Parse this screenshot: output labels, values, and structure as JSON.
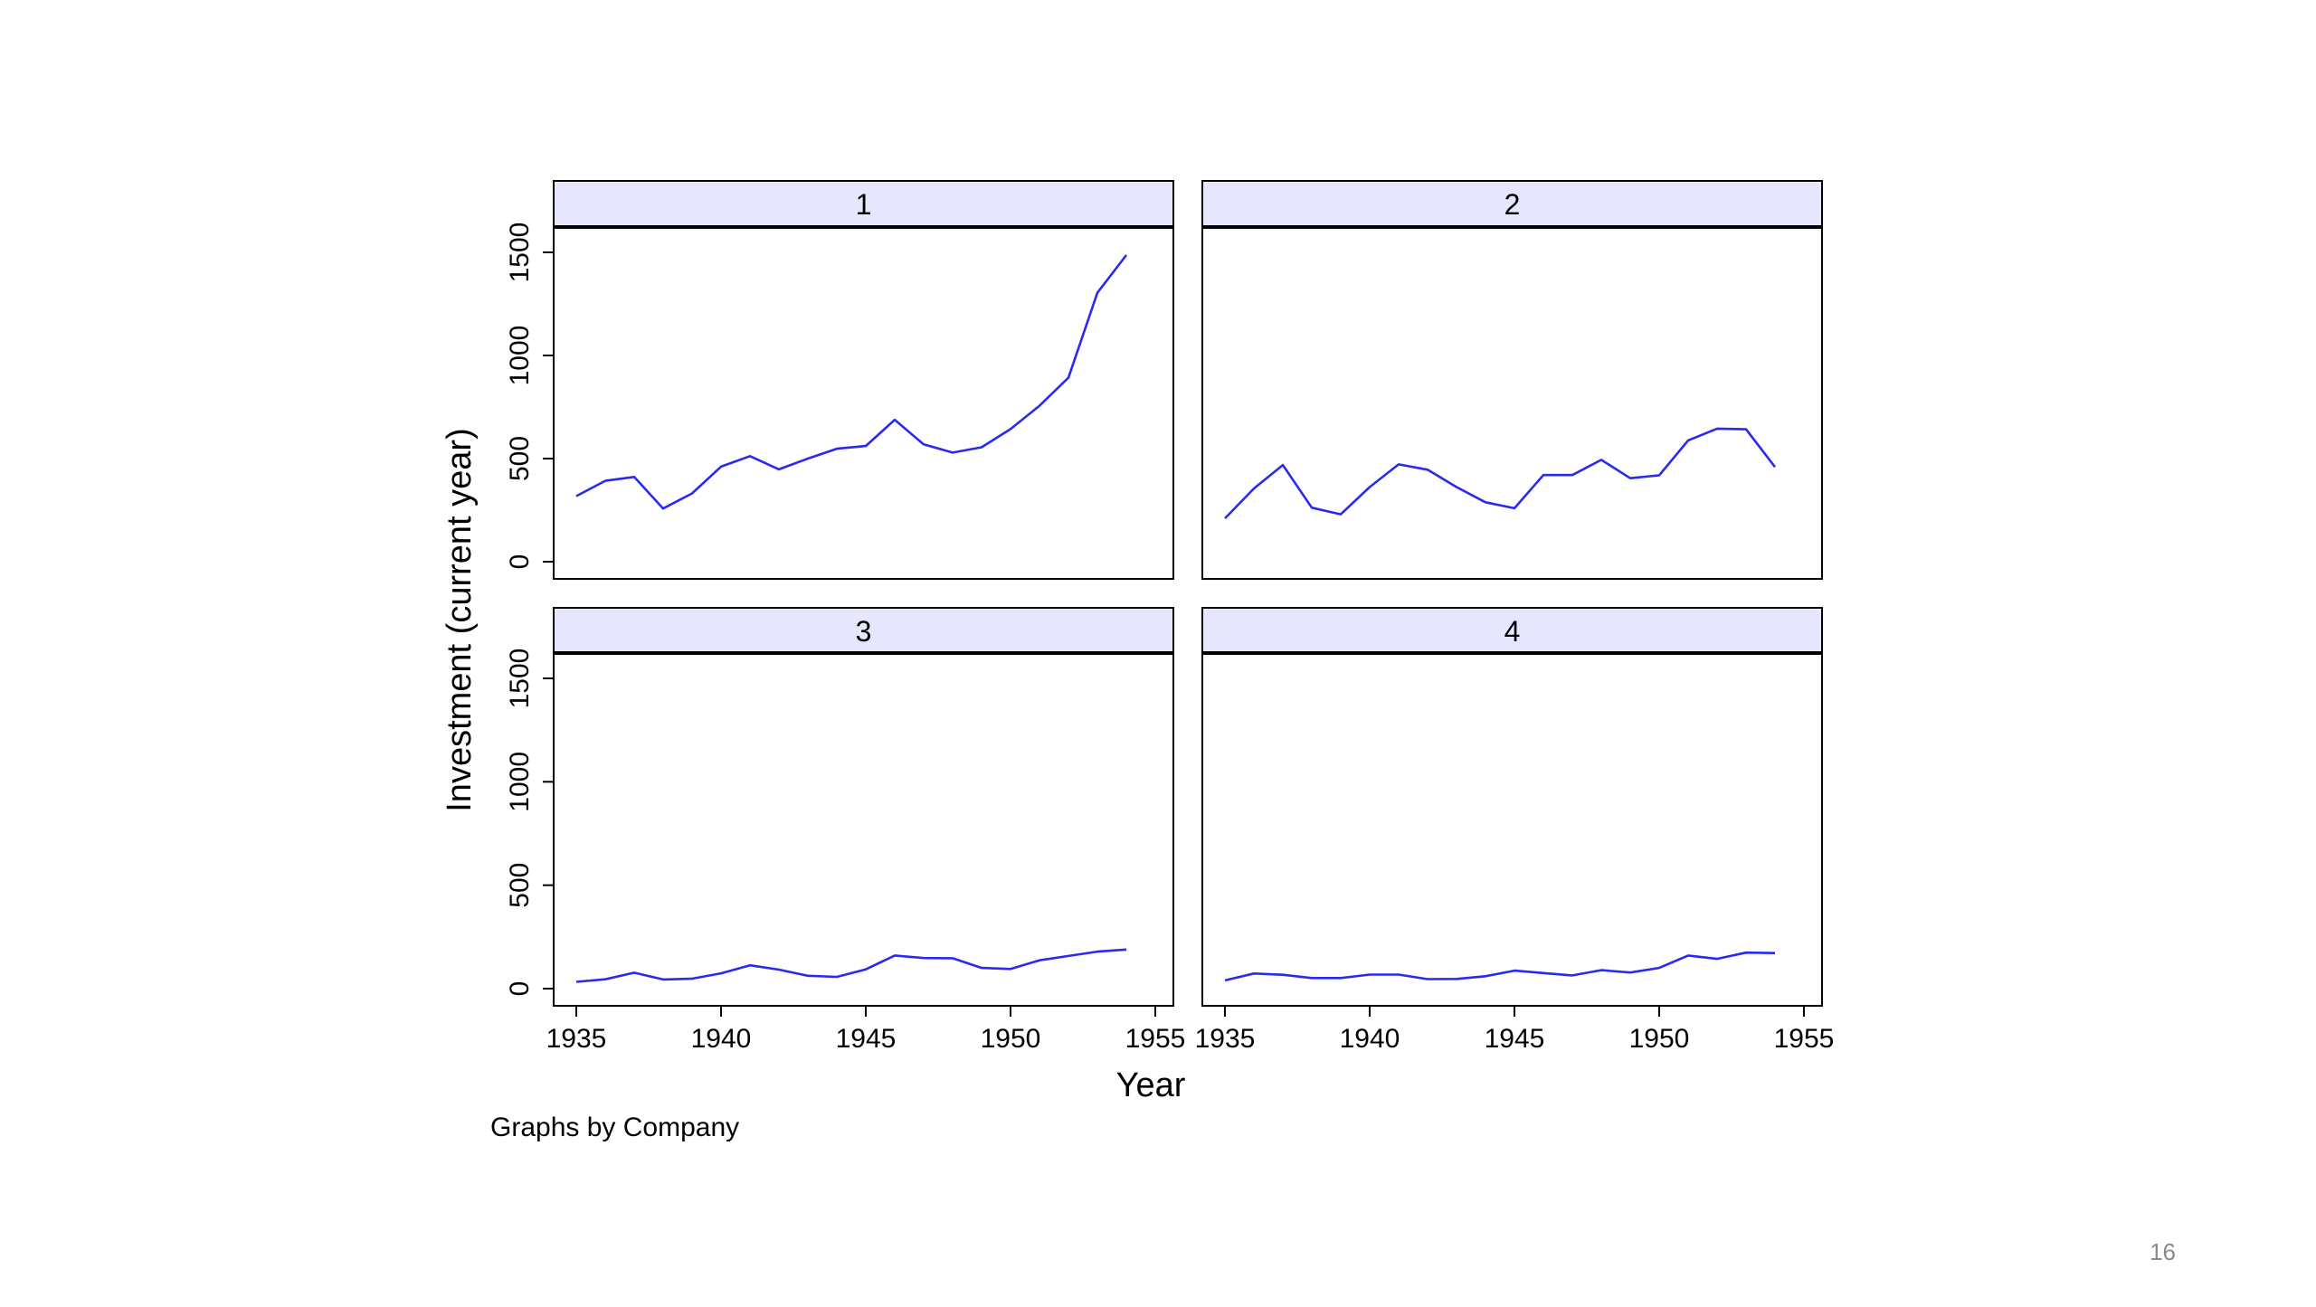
{
  "chart_data": {
    "type": "line",
    "layout": "2x2 small multiples",
    "ylabel": "Investment (current year)",
    "xlabel": "Year",
    "note": "Graphs by Company",
    "xlim": [
      1935,
      1955
    ],
    "ylim": [
      0,
      1500
    ],
    "x_ticks": [
      "1935",
      "1940",
      "1945",
      "1950",
      "1955"
    ],
    "x_ticks_left_panel": [
      "1935",
      "1940",
      "1945",
      "1950",
      "1955"
    ],
    "y_ticks": [
      "0",
      "500",
      "1000",
      "1500"
    ],
    "grid": false,
    "x": [
      1935,
      1936,
      1937,
      1938,
      1939,
      1940,
      1941,
      1942,
      1943,
      1944,
      1945,
      1946,
      1947,
      1948,
      1949,
      1950,
      1951,
      1952,
      1953,
      1954
    ],
    "series": [
      {
        "panel": "1",
        "values": [
          318,
          392,
          411,
          258,
          331,
          461,
          512,
          448,
          500,
          548,
          561,
          688,
          569,
          529,
          555,
          643,
          756,
          892,
          1304,
          1487
        ]
      },
      {
        "panel": "2",
        "values": [
          210,
          355,
          469,
          262,
          230,
          362,
          472,
          446,
          362,
          288,
          259,
          420,
          420,
          494,
          405,
          419,
          588,
          645,
          642,
          459
        ]
      },
      {
        "panel": "3",
        "values": [
          33,
          45,
          77,
          44,
          48,
          74,
          113,
          92,
          62,
          57,
          93,
          160,
          148,
          147,
          100,
          95,
          137,
          158,
          179,
          189
        ]
      },
      {
        "panel": "4",
        "values": [
          40,
          73,
          67,
          51,
          51,
          68,
          68,
          46,
          47,
          60,
          87,
          75,
          64,
          89,
          78,
          100,
          160,
          144,
          174,
          172
        ]
      }
    ],
    "colors": {
      "line": "#2a2aee",
      "strip": "#e6e6ff",
      "frame": "#000000"
    }
  },
  "slide": {
    "page_number": "16"
  }
}
